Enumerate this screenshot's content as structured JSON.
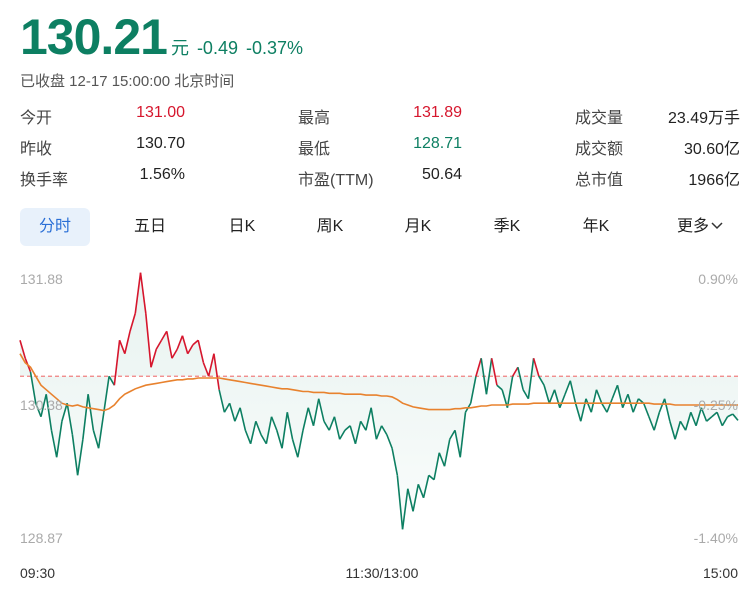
{
  "quote": {
    "price": "130.21",
    "unit": "元",
    "change": "-0.49",
    "change_pct": "-0.37%",
    "status": "已收盘 12-17 15:00:00 北京时间"
  },
  "stats": [
    [
      {
        "label": "今开",
        "value": "131.00",
        "tone": "red"
      },
      {
        "label": "最高",
        "value": "131.89",
        "tone": "red"
      },
      {
        "label": "成交量",
        "value": "23.49万手",
        "tone": "dark"
      }
    ],
    [
      {
        "label": "昨收",
        "value": "130.70",
        "tone": "dark"
      },
      {
        "label": "最低",
        "value": "128.71",
        "tone": "green"
      },
      {
        "label": "成交额",
        "value": "30.60亿",
        "tone": "dark"
      }
    ],
    [
      {
        "label": "换手率",
        "value": "1.56%",
        "tone": "dark"
      },
      {
        "label": "市盈(TTM)",
        "value": "50.64",
        "tone": "dark"
      },
      {
        "label": "总市值",
        "value": "1966亿",
        "tone": "dark"
      }
    ]
  ],
  "tabs": [
    "分时",
    "五日",
    "日K",
    "周K",
    "月K",
    "季K",
    "年K",
    "更多"
  ],
  "colors": {
    "up": "#d6162d",
    "down": "#0d7f62",
    "avg": "#e8822e",
    "baseline": "#f08080"
  },
  "chart_data": {
    "type": "line",
    "y_ticks_left": [
      "131.88",
      "130.38",
      "128.87"
    ],
    "y_ticks_right": [
      "0.90%",
      "-0.25%",
      "-1.40%"
    ],
    "x_ticks": [
      "09:30",
      "11:30/13:00",
      "15:00"
    ],
    "prev_close": 130.7,
    "ylim": [
      128.87,
      131.88
    ],
    "series": [
      {
        "role": "price",
        "values": [
          131.1,
          130.9,
          130.75,
          130.4,
          130.25,
          130.5,
          130.1,
          129.8,
          130.2,
          130.4,
          130.05,
          129.6,
          130.0,
          130.5,
          130.1,
          129.9,
          130.3,
          130.7,
          130.6,
          131.1,
          130.95,
          131.2,
          131.4,
          131.85,
          131.4,
          130.8,
          131.0,
          131.1,
          131.2,
          130.9,
          131.0,
          131.15,
          130.95,
          131.05,
          131.1,
          130.85,
          130.7,
          130.95,
          130.55,
          130.3,
          130.4,
          130.2,
          130.35,
          130.1,
          129.95,
          130.2,
          130.05,
          129.95,
          130.25,
          130.1,
          129.9,
          130.3,
          130.0,
          129.8,
          130.1,
          130.35,
          130.15,
          130.45,
          130.2,
          130.1,
          130.25,
          130.0,
          130.1,
          130.15,
          129.95,
          130.2,
          130.1,
          130.35,
          130.0,
          130.15,
          130.05,
          129.9,
          129.6,
          129.0,
          129.45,
          129.2,
          129.5,
          129.35,
          129.6,
          129.55,
          129.85,
          129.7,
          130.0,
          130.1,
          129.8,
          130.3,
          130.4,
          130.7,
          130.9,
          130.5,
          130.9,
          130.6,
          130.55,
          130.35,
          130.7,
          130.8,
          130.55,
          130.45,
          130.9,
          130.7,
          130.6,
          130.4,
          130.55,
          130.35,
          130.5,
          130.65,
          130.4,
          130.2,
          130.45,
          130.3,
          130.55,
          130.4,
          130.3,
          130.45,
          130.6,
          130.35,
          130.5,
          130.3,
          130.45,
          130.4,
          130.25,
          130.1,
          130.3,
          130.45,
          130.2,
          130.0,
          130.2,
          130.1,
          130.3,
          130.15,
          130.35,
          130.2,
          130.25,
          130.3,
          130.15,
          130.25,
          130.28,
          130.21
        ]
      },
      {
        "role": "average",
        "values": [
          130.95,
          130.85,
          130.8,
          130.7,
          130.6,
          130.55,
          130.5,
          130.45,
          130.4,
          130.38,
          130.37,
          130.38,
          130.36,
          130.35,
          130.34,
          130.33,
          130.32,
          130.34,
          130.38,
          130.45,
          130.5,
          130.53,
          130.56,
          130.58,
          130.6,
          130.61,
          130.62,
          130.63,
          130.64,
          130.65,
          130.66,
          130.66,
          130.67,
          130.67,
          130.68,
          130.68,
          130.68,
          130.68,
          130.68,
          130.67,
          130.66,
          130.65,
          130.64,
          130.63,
          130.62,
          130.61,
          130.6,
          130.59,
          130.58,
          130.57,
          130.56,
          130.56,
          130.55,
          130.54,
          130.53,
          130.53,
          130.52,
          130.52,
          130.52,
          130.51,
          130.51,
          130.51,
          130.5,
          130.5,
          130.5,
          130.5,
          130.49,
          130.49,
          130.49,
          130.48,
          130.48,
          130.47,
          130.44,
          130.4,
          130.38,
          130.36,
          130.35,
          130.34,
          130.33,
          130.33,
          130.33,
          130.33,
          130.33,
          130.34,
          130.34,
          130.35,
          130.35,
          130.36,
          130.37,
          130.37,
          130.38,
          130.38,
          130.38,
          130.38,
          130.39,
          130.39,
          130.39,
          130.39,
          130.4,
          130.4,
          130.4,
          130.4,
          130.4,
          130.4,
          130.4,
          130.4,
          130.4,
          130.4,
          130.4,
          130.4,
          130.4,
          130.4,
          130.4,
          130.4,
          130.4,
          130.4,
          130.4,
          130.4,
          130.4,
          130.4,
          130.4,
          130.39,
          130.39,
          130.39,
          130.39,
          130.38,
          130.38,
          130.38,
          130.38,
          130.38,
          130.38,
          130.38,
          130.38,
          130.38,
          130.38,
          130.38,
          130.38,
          130.38
        ]
      }
    ]
  }
}
